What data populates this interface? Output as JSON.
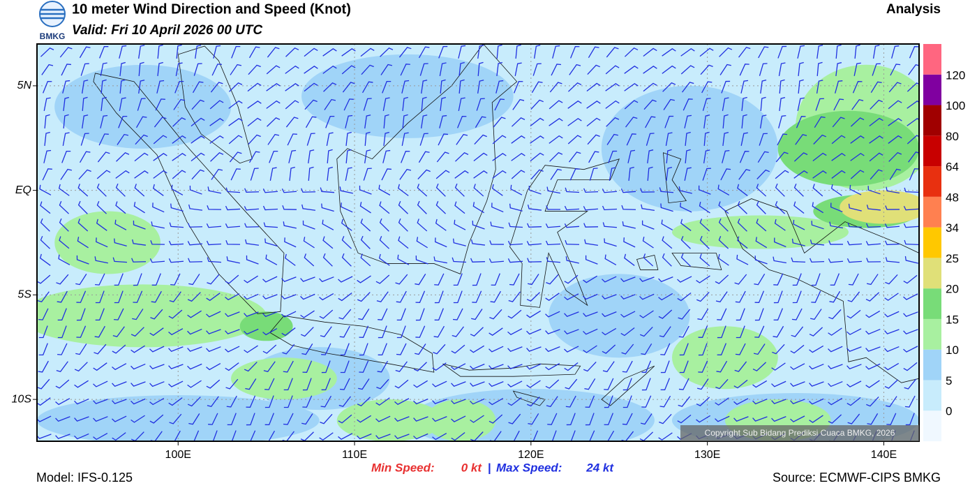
{
  "header": {
    "title": "10 meter Wind Direction and Speed (Knot)",
    "valid": "Valid: Fri 10 April 2026 00 UTC",
    "product": "Analysis",
    "logo_text": "BMKG"
  },
  "map": {
    "lon_range": [
      92,
      142
    ],
    "lat_range": [
      -12,
      7
    ],
    "lon_ticks": [
      {
        "value": 100,
        "label": "100E"
      },
      {
        "value": 110,
        "label": "110E"
      },
      {
        "value": 120,
        "label": "120E"
      },
      {
        "value": 130,
        "label": "130E"
      },
      {
        "value": 140,
        "label": "140E"
      }
    ],
    "lat_ticks": [
      {
        "value": 5,
        "label": "5N"
      },
      {
        "value": 0,
        "label": "EQ"
      },
      {
        "value": -5,
        "label": "5S"
      },
      {
        "value": -10,
        "label": "10S"
      }
    ],
    "copyright": "Copyright Sub Bidang Prediksi Cuaca BMKG, 2026"
  },
  "colorbar": {
    "levels": [
      0,
      5,
      10,
      15,
      20,
      25,
      34,
      48,
      64,
      80,
      100,
      120
    ],
    "colors": [
      "#f0f8ff",
      "#c8ecfc",
      "#a0d4f8",
      "#a8f0a0",
      "#78dc78",
      "#e0e078",
      "#ffc800",
      "#ff8050",
      "#e83010",
      "#c80000",
      "#a00000",
      "#8000a0",
      "#ff6680"
    ]
  },
  "footer": {
    "model": "Model: IFS-0.125",
    "source": "Source: ECMWF-CIPS BMKG",
    "min_label": "Min Speed:",
    "min_value": "0 kt",
    "separator": "|",
    "max_label": "Max Speed:",
    "max_value": "24 kt"
  }
}
